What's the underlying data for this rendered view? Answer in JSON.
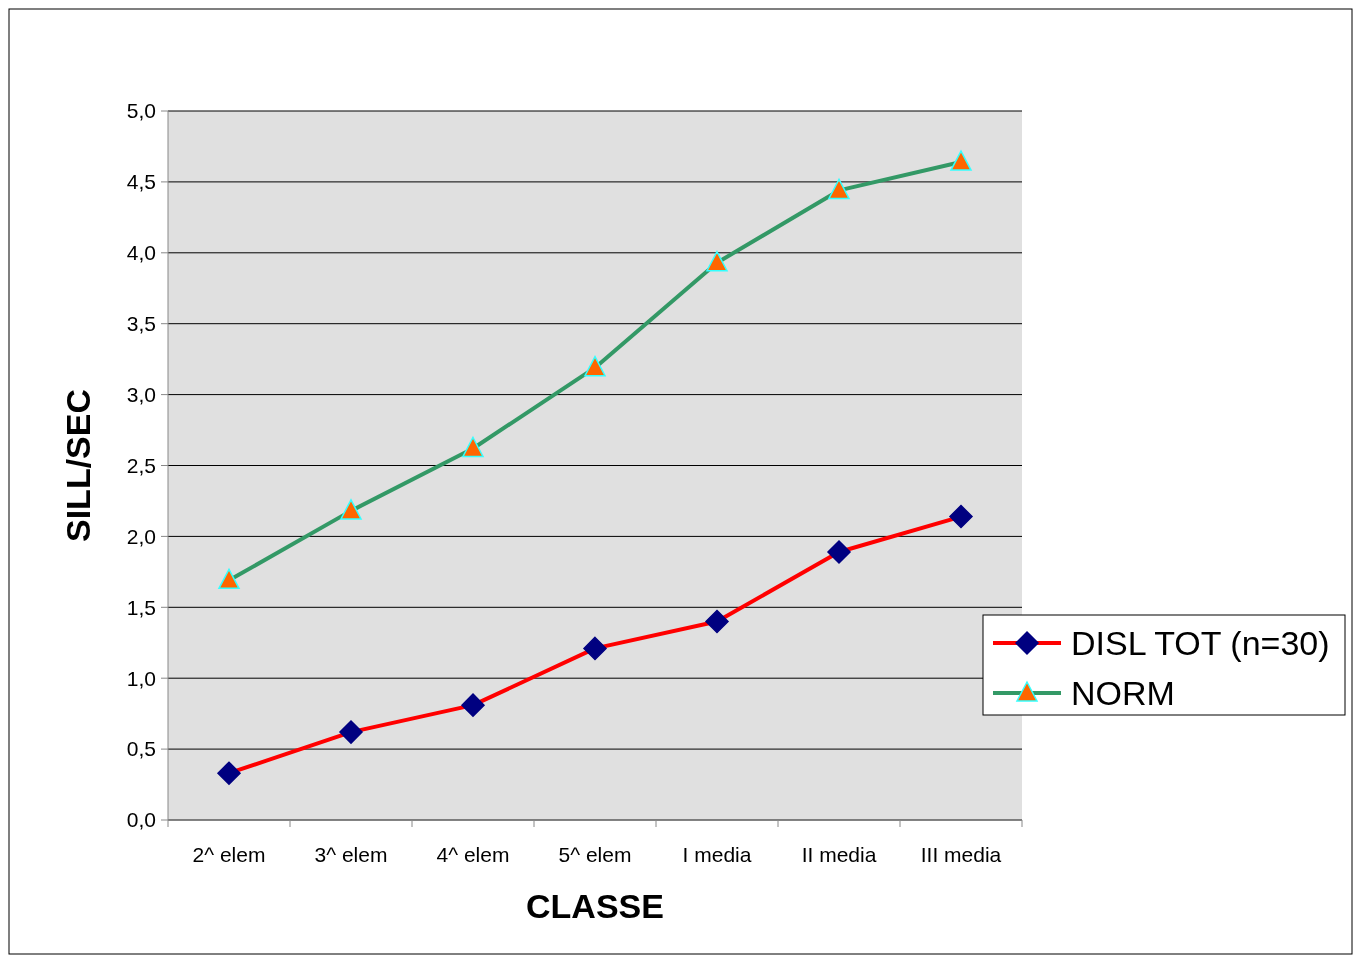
{
  "chart_data": {
    "type": "line",
    "xlabel": "CLASSE",
    "ylabel": "SILL/SEC",
    "categories": [
      "2^ elem",
      "3^ elem",
      "4^ elem",
      "5^ elem",
      "I media",
      "II media",
      "III media"
    ],
    "series": [
      {
        "name": "DISL TOT (n=30)",
        "color": "#ff0000",
        "marker": "diamond",
        "values": [
          0.33,
          0.62,
          0.81,
          1.21,
          1.4,
          1.89,
          2.14
        ]
      },
      {
        "name": "NORM",
        "color": "#339966",
        "marker": "triangle",
        "values": [
          1.69,
          2.18,
          2.62,
          3.19,
          3.93,
          4.44,
          4.64
        ]
      }
    ],
    "ylim": [
      0,
      5
    ],
    "yticks": [
      {
        "value": 0,
        "label": "0,0"
      },
      {
        "value": 0.5,
        "label": "0,5"
      },
      {
        "value": 1,
        "label": "1,0"
      },
      {
        "value": 1.5,
        "label": "1,5"
      },
      {
        "value": 2,
        "label": "2,0"
      },
      {
        "value": 2.5,
        "label": "2,5"
      },
      {
        "value": 3,
        "label": "3,0"
      },
      {
        "value": 3.5,
        "label": "3,5"
      },
      {
        "value": 4,
        "label": "4,0"
      },
      {
        "value": 4.5,
        "label": "4,5"
      },
      {
        "value": 5,
        "label": "5,0"
      }
    ],
    "grid": "y",
    "legend": "right",
    "line_style": "solid"
  }
}
